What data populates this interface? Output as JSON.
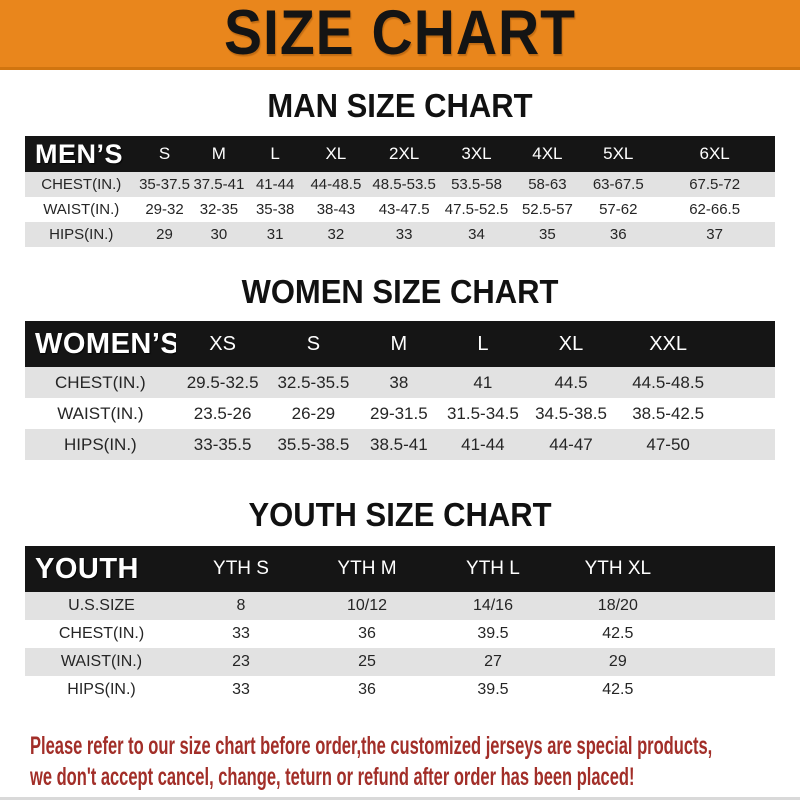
{
  "header": {
    "title": "SIZE CHART",
    "banner_color": "#e9861c",
    "title_color": "#141414"
  },
  "sections": [
    {
      "heading": "MAN SIZE CHART",
      "table": {
        "label": "MEN’S",
        "columns": [
          "S",
          "M",
          "L",
          "XL",
          "2XL",
          "3XL",
          "4XL",
          "5XL",
          "6XL"
        ],
        "rows": [
          {
            "label": "CHEST(IN.)",
            "values": [
              "35-37.5",
              "37.5-41",
              "41-44",
              "44-48.5",
              "48.5-53.5",
              "53.5-58",
              "58-63",
              "63-67.5",
              "67.5-72"
            ]
          },
          {
            "label": "WAIST(IN.)",
            "values": [
              "29-32",
              "32-35",
              "35-38",
              "38-43",
              "43-47.5",
              "47.5-52.5",
              "52.5-57",
              "57-62",
              "62-66.5"
            ]
          },
          {
            "label": "HIPS(IN.)",
            "values": [
              "29",
              "30",
              "31",
              "32",
              "33",
              "34",
              "35",
              "36",
              "37"
            ]
          }
        ]
      }
    },
    {
      "heading": "WOMEN SIZE CHART",
      "table": {
        "label": "WOMEN’S",
        "columns": [
          "XS",
          "S",
          "M",
          "L",
          "XL",
          "XXL"
        ],
        "rows": [
          {
            "label": "CHEST(IN.)",
            "values": [
              "29.5-32.5",
              "32.5-35.5",
              "38",
              "41",
              "44.5",
              "44.5-48.5"
            ]
          },
          {
            "label": "WAIST(IN.)",
            "values": [
              "23.5-26",
              "26-29",
              "29-31.5",
              "31.5-34.5",
              "34.5-38.5",
              "38.5-42.5"
            ]
          },
          {
            "label": "HIPS(IN.)",
            "values": [
              "33-35.5",
              "35.5-38.5",
              "38.5-41",
              "41-44",
              "44-47",
              "47-50"
            ]
          }
        ]
      }
    },
    {
      "heading": "YOUTH SIZE CHART",
      "table": {
        "label": "YOUTH",
        "columns": [
          "YTH S",
          "YTH M",
          "YTH L",
          "YTH XL"
        ],
        "rows": [
          {
            "label": "U.S.SIZE",
            "values": [
              "8",
              "10/12",
              "14/16",
              "18/20"
            ]
          },
          {
            "label": "CHEST(IN.)",
            "values": [
              "33",
              "36",
              "39.5",
              "42.5"
            ]
          },
          {
            "label": "WAIST(IN.)",
            "values": [
              "23",
              "25",
              "27",
              "29"
            ]
          },
          {
            "label": "HIPS(IN.)",
            "values": [
              "33",
              "36",
              "39.5",
              "42.5"
            ]
          }
        ]
      }
    }
  ],
  "footer": {
    "lines": [
      "Please refer to our size chart before order,the customized jerseys are special products,",
      "we don't accept cancel, change, teturn or refund after order has been placed!"
    ],
    "text_color": "#a22e28",
    "header_row_color": "#151515",
    "stripe_row_color": "#e2e2e2"
  }
}
